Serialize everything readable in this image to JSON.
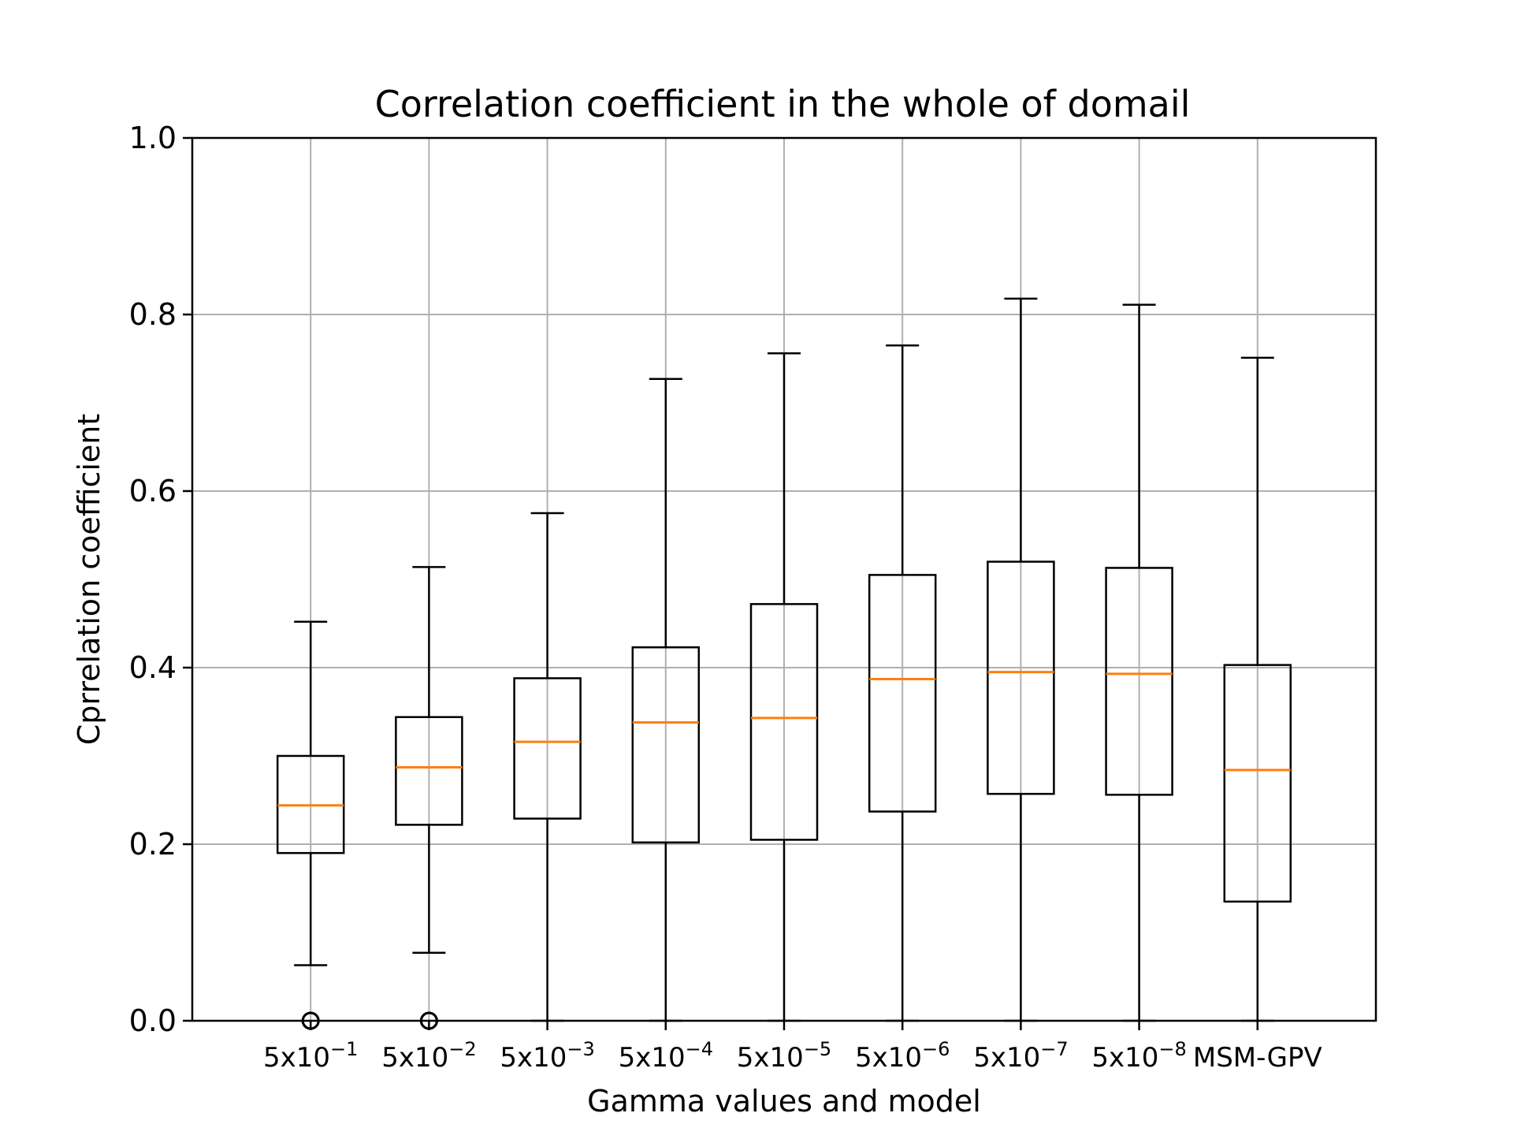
{
  "chart_data": {
    "type": "boxplot",
    "title": "Correlation coefficient in the whole of domail",
    "xlabel": "Gamma values and model",
    "ylabel": "Cprrelation coefficient",
    "ylim": [
      0.0,
      1.0
    ],
    "yticks": [
      "0.0",
      "0.2",
      "0.4",
      "0.6",
      "0.8",
      "1.0"
    ],
    "grid": true,
    "categories": [
      {
        "base": "5x10",
        "exp": "−1"
      },
      {
        "base": "5x10",
        "exp": "−2"
      },
      {
        "base": "5x10",
        "exp": "−3"
      },
      {
        "base": "5x10",
        "exp": "−4"
      },
      {
        "base": "5x10",
        "exp": "−5"
      },
      {
        "base": "5x10",
        "exp": "−6"
      },
      {
        "base": "5x10",
        "exp": "−7"
      },
      {
        "base": "5x10",
        "exp": "−8"
      },
      {
        "base": "MSM-GPV",
        "exp": ""
      }
    ],
    "boxes": [
      {
        "whisker_low": 0.063,
        "q1": 0.19,
        "median": 0.244,
        "q3": 0.3,
        "whisker_high": 0.452,
        "outliers": [
          0.0,
          0.0
        ]
      },
      {
        "whisker_low": 0.077,
        "q1": 0.222,
        "median": 0.287,
        "q3": 0.344,
        "whisker_high": 0.514,
        "outliers": [
          0.0,
          0.0
        ]
      },
      {
        "whisker_low": 0.0,
        "q1": 0.229,
        "median": 0.316,
        "q3": 0.388,
        "whisker_high": 0.575,
        "outliers": []
      },
      {
        "whisker_low": 0.0,
        "q1": 0.202,
        "median": 0.338,
        "q3": 0.423,
        "whisker_high": 0.727,
        "outliers": []
      },
      {
        "whisker_low": 0.0,
        "q1": 0.205,
        "median": 0.343,
        "q3": 0.472,
        "whisker_high": 0.756,
        "outliers": []
      },
      {
        "whisker_low": 0.0,
        "q1": 0.237,
        "median": 0.387,
        "q3": 0.505,
        "whisker_high": 0.765,
        "outliers": []
      },
      {
        "whisker_low": 0.0,
        "q1": 0.257,
        "median": 0.395,
        "q3": 0.52,
        "whisker_high": 0.818,
        "outliers": []
      },
      {
        "whisker_low": 0.0,
        "q1": 0.256,
        "median": 0.393,
        "q3": 0.513,
        "whisker_high": 0.811,
        "outliers": []
      },
      {
        "whisker_low": 0.0,
        "q1": 0.135,
        "median": 0.284,
        "q3": 0.403,
        "whisker_high": 0.751,
        "outliers": []
      }
    ],
    "colors": {
      "box": "#000000",
      "median": "#ff7f0e",
      "grid": "#b0b0b0"
    }
  }
}
